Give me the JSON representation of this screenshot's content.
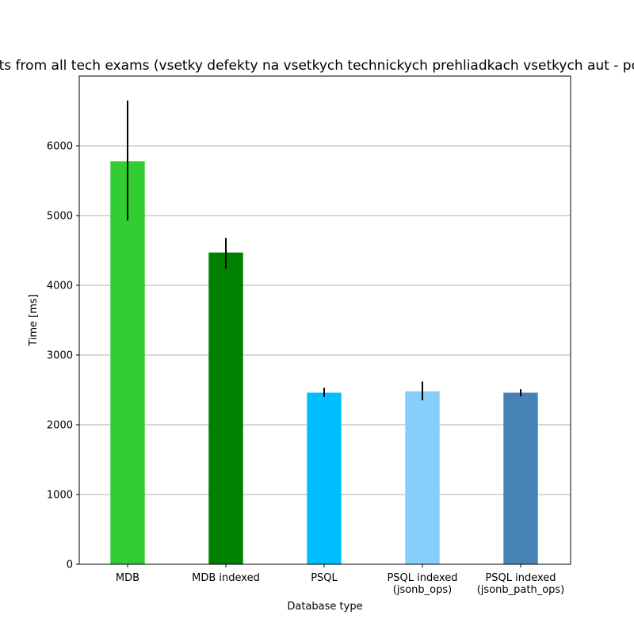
{
  "chart_data": {
    "type": "bar",
    "title": "Defects from all tech exams (vsetky defekty na vsetkych technickych prehliadkach vsetkych aut - pocitanie)",
    "xlabel": "Database type",
    "ylabel": "Time [ms]",
    "ylim": [
      0,
      7000
    ],
    "yticks": [
      0,
      1000,
      2000,
      3000,
      4000,
      5000,
      6000
    ],
    "grid": "y",
    "categories": [
      [
        "MDB"
      ],
      [
        "MDB indexed"
      ],
      [
        "PSQL"
      ],
      [
        "PSQL indexed",
        "(jsonb_ops)"
      ],
      [
        "PSQL indexed",
        "(jsonb_path_ops)"
      ]
    ],
    "values": [
      5780,
      4470,
      2460,
      2480,
      2460
    ],
    "errors_low": [
      4930,
      4240,
      2400,
      2350,
      2410
    ],
    "errors_high": [
      6650,
      4680,
      2530,
      2620,
      2510
    ],
    "colors": [
      "#32cd32",
      "#008000",
      "#00bfff",
      "#87cefa",
      "#4682b4"
    ]
  }
}
